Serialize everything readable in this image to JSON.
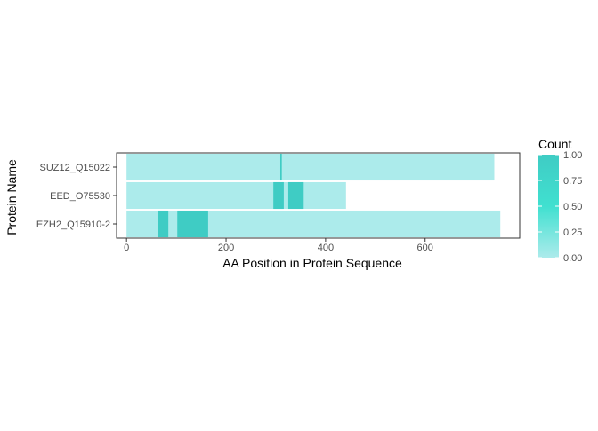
{
  "chart_data": {
    "type": "heatmap",
    "xlabel": "AA Position in Protein Sequence",
    "ylabel": "Protein Name",
    "xlim": [
      -20,
      790
    ],
    "x_ticks": [
      0,
      200,
      400,
      600
    ],
    "x_tick_labels": [
      "0",
      "200",
      "400",
      "600"
    ],
    "categories": [
      "SUZ12_Q15022",
      "EED_O75530",
      "EZH2_Q15910-2"
    ],
    "proteins": [
      {
        "name": "SUZ12_Q15022",
        "length": 739,
        "segments": [
          {
            "start": 0,
            "end": 739,
            "count": 0.0
          },
          {
            "start": 309,
            "end": 312,
            "count": 1.0
          }
        ]
      },
      {
        "name": "EED_O75530",
        "length": 441,
        "segments": [
          {
            "start": 0,
            "end": 441,
            "count": 0.0
          },
          {
            "start": 295,
            "end": 316,
            "count": 1.0
          },
          {
            "start": 325,
            "end": 356,
            "count": 1.0
          }
        ]
      },
      {
        "name": "EZH2_Q15910-2",
        "length": 751,
        "segments": [
          {
            "start": 0,
            "end": 751,
            "count": 0.0
          },
          {
            "start": 64,
            "end": 84,
            "count": 1.0
          },
          {
            "start": 102,
            "end": 164,
            "count": 1.0
          }
        ]
      }
    ],
    "legend": {
      "title": "Count",
      "position": "right",
      "range": [
        0,
        1
      ],
      "ticks": [
        1.0,
        0.75,
        0.5,
        0.25,
        0.0
      ],
      "tick_labels": [
        "1.00",
        "0.75",
        "0.50",
        "0.25",
        "0.00"
      ],
      "colors": {
        "low": "#acebeb",
        "mid": "#40e0d0",
        "high": "#3fccc4"
      }
    },
    "grid": false
  }
}
